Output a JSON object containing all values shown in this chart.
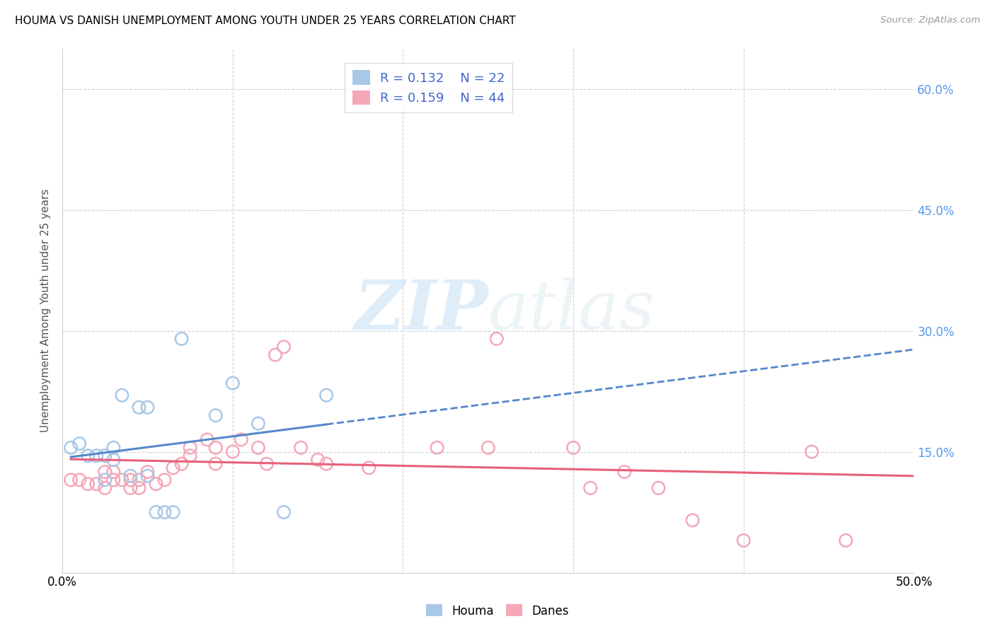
{
  "title": "HOUMA VS DANISH UNEMPLOYMENT AMONG YOUTH UNDER 25 YEARS CORRELATION CHART",
  "source": "Source: ZipAtlas.com",
  "ylabel": "Unemployment Among Youth under 25 years",
  "xlim": [
    0.0,
    0.5
  ],
  "ylim": [
    0.0,
    0.65
  ],
  "houma_R": 0.132,
  "houma_N": 22,
  "danes_R": 0.159,
  "danes_N": 44,
  "houma_color": "#a8c8e8",
  "danes_color": "#f4a8b8",
  "houma_line_color": "#5588cc",
  "danes_line_color": "#e8607a",
  "legend_R_N_color": "#4466cc",
  "right_axis_color": "#5599ee",
  "houma_x": [
    0.005,
    0.01,
    0.015,
    0.02,
    0.025,
    0.025,
    0.03,
    0.03,
    0.035,
    0.04,
    0.045,
    0.05,
    0.05,
    0.055,
    0.06,
    0.065,
    0.07,
    0.09,
    0.1,
    0.115,
    0.13,
    0.155
  ],
  "houma_y": [
    0.155,
    0.16,
    0.145,
    0.145,
    0.145,
    0.115,
    0.155,
    0.14,
    0.22,
    0.12,
    0.205,
    0.12,
    0.205,
    0.075,
    0.075,
    0.075,
    0.29,
    0.195,
    0.235,
    0.185,
    0.075,
    0.22
  ],
  "danes_x": [
    0.005,
    0.01,
    0.015,
    0.02,
    0.025,
    0.025,
    0.03,
    0.03,
    0.035,
    0.04,
    0.04,
    0.045,
    0.045,
    0.05,
    0.055,
    0.06,
    0.065,
    0.07,
    0.075,
    0.075,
    0.085,
    0.09,
    0.09,
    0.1,
    0.105,
    0.115,
    0.12,
    0.125,
    0.13,
    0.14,
    0.15,
    0.155,
    0.18,
    0.22,
    0.25,
    0.255,
    0.3,
    0.31,
    0.33,
    0.35,
    0.37,
    0.4,
    0.44,
    0.46
  ],
  "danes_y": [
    0.115,
    0.115,
    0.11,
    0.11,
    0.125,
    0.105,
    0.125,
    0.115,
    0.115,
    0.115,
    0.105,
    0.105,
    0.115,
    0.125,
    0.11,
    0.115,
    0.13,
    0.135,
    0.155,
    0.145,
    0.165,
    0.155,
    0.135,
    0.15,
    0.165,
    0.155,
    0.135,
    0.27,
    0.28,
    0.155,
    0.14,
    0.135,
    0.13,
    0.155,
    0.155,
    0.29,
    0.155,
    0.105,
    0.125,
    0.105,
    0.065,
    0.04,
    0.15,
    0.04
  ],
  "houma_line_start_x": 0.005,
  "houma_line_end_x": 0.5,
  "danes_line_start_x": 0.005,
  "danes_line_end_x": 0.5,
  "watermark_zip": "ZIP",
  "watermark_atlas": "atlas"
}
